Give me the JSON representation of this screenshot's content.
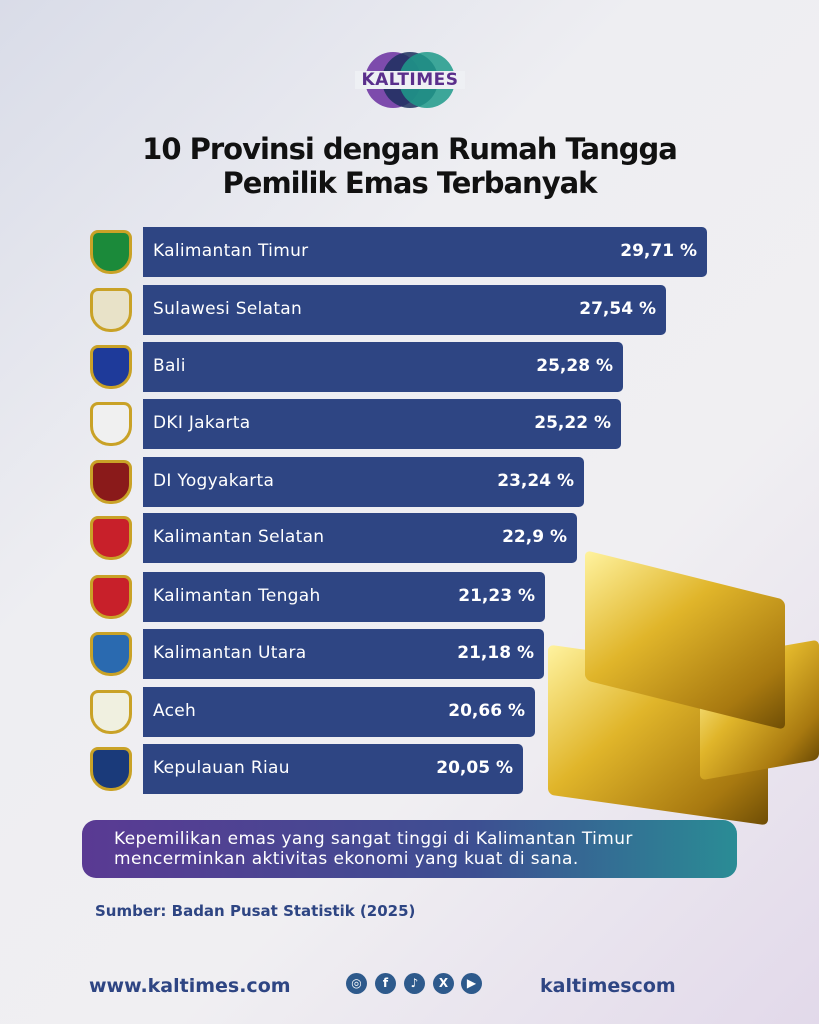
{
  "brand": {
    "logo_text": "KALTIMES"
  },
  "chart_data": {
    "type": "bar",
    "orientation": "horizontal",
    "title": "10 Provinsi dengan Rumah Tangga Pemilik Emas Terbanyak",
    "title_lines": [
      "10 Provinsi dengan Rumah Tangga",
      "Pemilik Emas Terbanyak"
    ],
    "categories": [
      "Kalimantan Timur",
      "Sulawesi Selatan",
      "Bali",
      "DKI Jakarta",
      "DI Yogyakarta",
      "Kalimantan Selatan",
      "Kalimantan Tengah",
      "Kalimantan Utara",
      "Aceh",
      "Kepulauan Riau"
    ],
    "values": [
      29.71,
      27.54,
      25.28,
      25.22,
      23.24,
      22.9,
      21.23,
      21.18,
      20.66,
      20.05
    ],
    "labels": [
      "29,71 %",
      "27,54 %",
      "25,28 %",
      "25,22 %",
      "23,24 %",
      "22,9 %",
      "21,23 %",
      "21,18 %",
      "20,66 %",
      "20,05 %"
    ],
    "unit": "%",
    "bar_color": "#2e4583"
  },
  "callout": {
    "line1": "Kepemilikan emas yang sangat tinggi di Kalimantan Timur",
    "line2": "mencerminkan aktivitas ekonomi yang kuat di sana."
  },
  "source": "Sumber: Badan Pusat Statistik (2025)",
  "footer": {
    "website": "www.kaltimes.com",
    "handle": "kaltimescom",
    "social": [
      "instagram-icon",
      "facebook-icon",
      "tiktok-icon",
      "x-icon",
      "youtube-icon"
    ]
  }
}
